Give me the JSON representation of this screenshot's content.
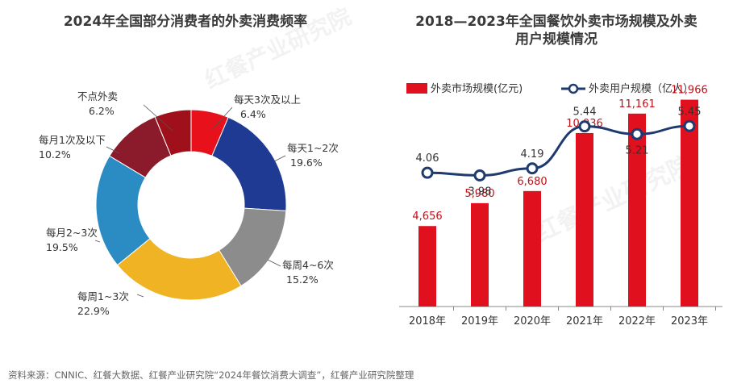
{
  "left_title": "2024年全国部分消费者的外卖消费频率",
  "right_title_line1": "2018—2023年全国餐饮外卖市场规模及外卖",
  "right_title_line2": "用户规模情况",
  "footer": "资料来源：CNNIC、红餐大数据、红餐产业研究院“2024年餐饮消费大调查”，红餐产业研究院整理",
  "watermark": "红餐产业研究院",
  "chart_data": [
    {
      "type": "pie",
      "title": "2024年全国部分消费者的外卖消费频率",
      "categories": [
        "每天3次及以上",
        "每天1~2次",
        "每周4~6次",
        "每周1~3次",
        "每月2~3次",
        "每月1次及以下",
        "不点外卖"
      ],
      "values": [
        6.4,
        19.6,
        15.2,
        22.9,
        19.5,
        10.2,
        6.2
      ],
      "value_labels": [
        "6.4%",
        "19.6%",
        "15.2%",
        "22.9%",
        "19.5%",
        "10.2%",
        "6.2%"
      ],
      "colors": [
        "#e8101a",
        "#1f3a93",
        "#8c8c8c",
        "#f0b323",
        "#2b8cc4",
        "#8b1a2b",
        "#a0101a"
      ]
    },
    {
      "type": "bar",
      "title": "2018—2023年全国餐饮外卖市场规模及外卖用户规模情况",
      "categories": [
        "2018年",
        "2019年",
        "2020年",
        "2021年",
        "2022年",
        "2023年"
      ],
      "series": [
        {
          "name": "外卖市场规模(亿元)",
          "type": "bar",
          "values": [
            4656,
            5980,
            6680,
            10036,
            11161,
            11966
          ],
          "labels": [
            "4,656",
            "5,980",
            "6,680",
            "10,036",
            "11,161",
            "11,966"
          ],
          "color": "#e0101e"
        },
        {
          "name": "外卖用户规模（亿人）",
          "type": "line",
          "values": [
            4.06,
            3.98,
            4.19,
            5.44,
            5.21,
            5.45
          ],
          "labels": [
            "4.06",
            "3.98",
            "4.19",
            "5.44",
            "5.21",
            "5.45"
          ],
          "color": "#1f3a6e"
        }
      ]
    }
  ]
}
